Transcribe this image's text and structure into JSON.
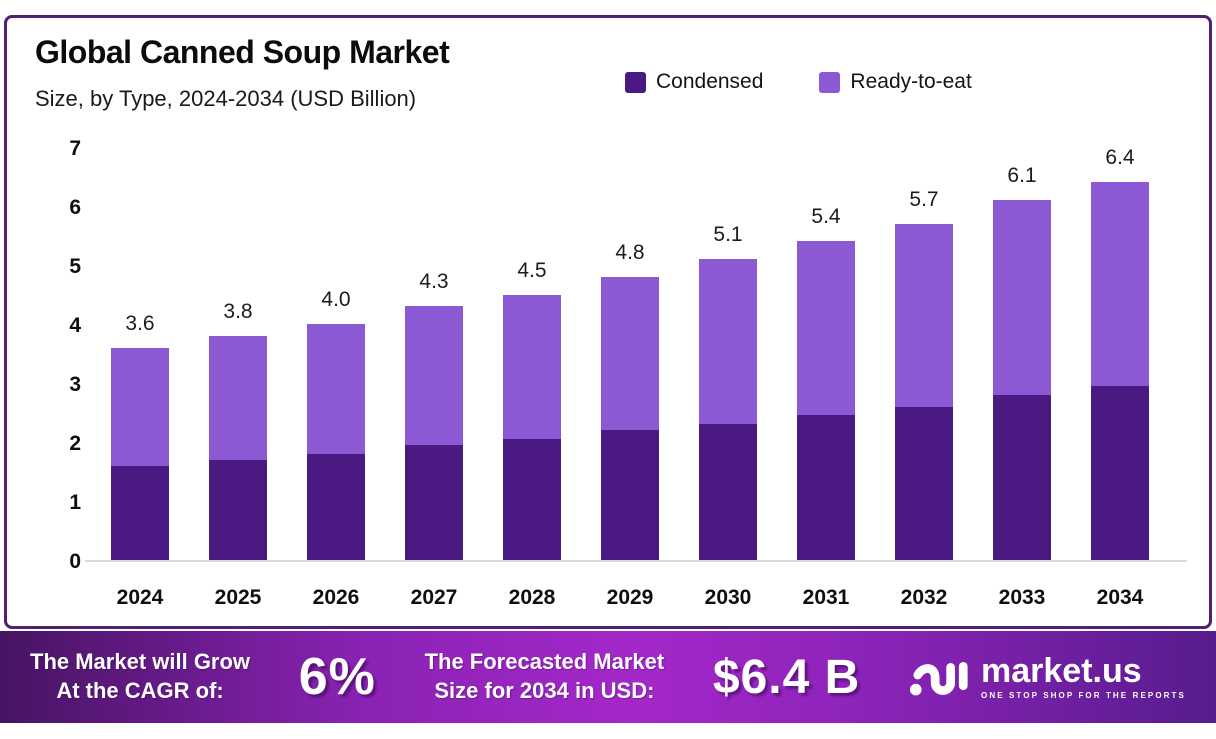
{
  "header": {
    "title": "Global Canned Soup Market",
    "subtitle": "Size, by Type, 2024-2034 (USD Billion)"
  },
  "chart_data": {
    "type": "bar",
    "stacked": true,
    "title": "Global Canned Soup Market Size, by Type, 2024-2034 (USD Billion)",
    "categories": [
      "2024",
      "2025",
      "2026",
      "2027",
      "2028",
      "2029",
      "2030",
      "2031",
      "2032",
      "2033",
      "2034"
    ],
    "series": [
      {
        "name": "Condensed",
        "color": "#4A1A82",
        "values": [
          1.6,
          1.7,
          1.8,
          1.95,
          2.05,
          2.2,
          2.3,
          2.45,
          2.6,
          2.8,
          2.95
        ]
      },
      {
        "name": "Ready-to-eat",
        "color": "#8B59D3",
        "values": [
          2.0,
          2.1,
          2.2,
          2.35,
          2.45,
          2.6,
          2.8,
          2.95,
          3.1,
          3.3,
          3.45
        ]
      }
    ],
    "totals": [
      3.6,
      3.8,
      4.0,
      4.3,
      4.5,
      4.8,
      5.1,
      5.4,
      5.7,
      6.1,
      6.4
    ],
    "total_labels": [
      "3.6",
      "3.8",
      "4.0",
      "4.3",
      "4.5",
      "4.8",
      "5.1",
      "5.4",
      "5.7",
      "6.1",
      "6.4"
    ],
    "xlabel": "",
    "ylabel": "",
    "ylim": [
      0,
      7
    ],
    "yticks": [
      0,
      1,
      2,
      3,
      4,
      5,
      6,
      7
    ],
    "grid": false,
    "legend_position": "top-right"
  },
  "colors": {
    "condensed": "#4A1A82",
    "ready_to_eat": "#8B59D3",
    "card_border": "#4f2170",
    "axis_line": "#d8d8d8"
  },
  "footer": {
    "cagr_label_line1": "The Market will Grow",
    "cagr_label_line2": "At the CAGR of:",
    "cagr_value": "6%",
    "forecast_label_line1": "The Forecasted Market",
    "forecast_label_line2": "Size for 2034 in USD:",
    "forecast_value": "$6.4 B",
    "brand": "market.us",
    "brand_tagline": "ONE STOP SHOP FOR THE REPORTS"
  }
}
